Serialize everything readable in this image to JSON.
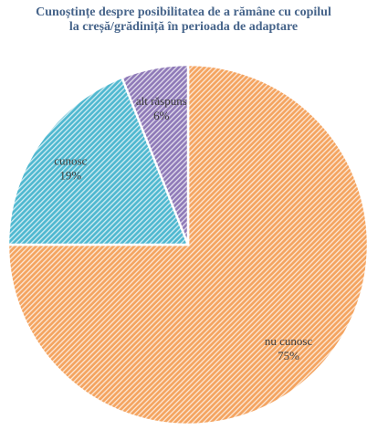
{
  "chart_data": {
    "type": "pie",
    "title": "Cunoștințe despre posibilitatea de a rămâne cu copilul la creșă/grădiniță în perioada de adaptare",
    "categories": [
      "nu cunosc",
      "cunosc",
      "alt răspuns"
    ],
    "values": [
      75,
      19,
      6
    ],
    "value_labels": [
      "75%",
      "19%",
      "6%"
    ],
    "colors": [
      "#f4a460",
      "#4fb8d0",
      "#8f7ab8"
    ]
  }
}
